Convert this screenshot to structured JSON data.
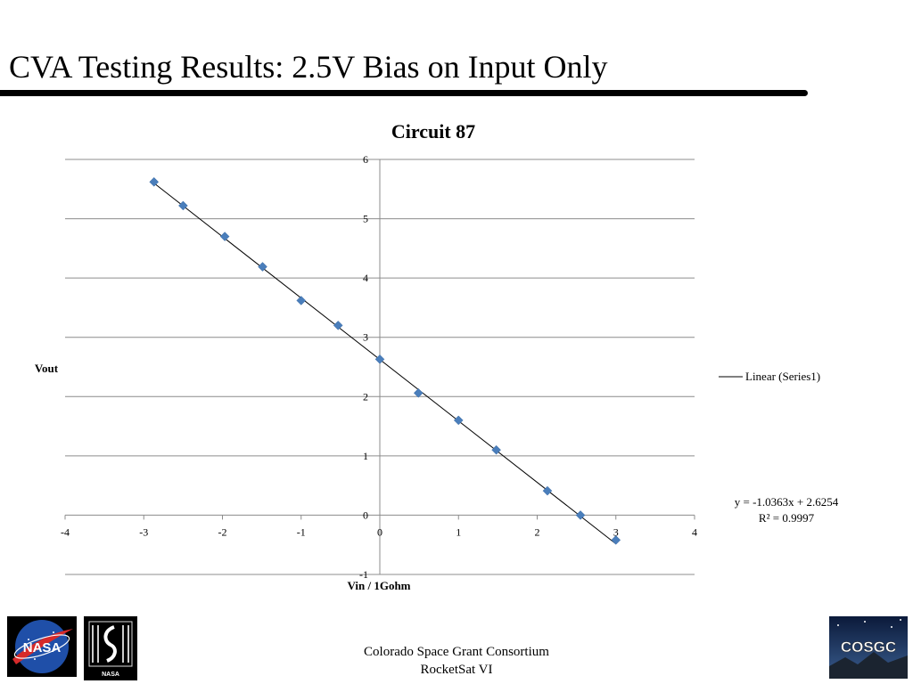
{
  "slide": {
    "title": "CVA Testing Results: 2.5V Bias on Input Only"
  },
  "footer": {
    "line1": "Colorado Space Grant Consortium",
    "line2": "RocketSat VI"
  },
  "logos": {
    "nasa_text": "NASA",
    "cu_text": "NASA",
    "cosgc_text": "COSGC"
  },
  "chart_data": {
    "type": "scatter",
    "title": "Circuit 87",
    "xlabel": "Vin / 1Gohm",
    "ylabel": "Vout",
    "xlim": [
      -4,
      4
    ],
    "ylim": [
      -1,
      6
    ],
    "xticks": [
      -4,
      -3,
      -2,
      -1,
      0,
      1,
      2,
      3,
      4
    ],
    "yticks": [
      -1,
      0,
      1,
      2,
      3,
      4,
      5,
      6
    ],
    "grid": "horizontal",
    "legend_position": "right",
    "series": [
      {
        "points": [
          [
            -2.87,
            5.62
          ],
          [
            -2.5,
            5.22
          ],
          [
            -1.97,
            4.7
          ],
          [
            -1.49,
            4.19
          ],
          [
            -1.0,
            3.62
          ],
          [
            -0.53,
            3.2
          ],
          [
            0.0,
            2.63
          ],
          [
            0.49,
            2.06
          ],
          [
            1.0,
            1.6
          ],
          [
            1.48,
            1.1
          ],
          [
            2.13,
            0.41
          ],
          [
            2.55,
            0.0
          ],
          [
            3.0,
            -0.42
          ]
        ],
        "marker_color": "#4a7ebb"
      }
    ],
    "trendline": {
      "name": "Linear (Series1)",
      "slope": -1.0363,
      "intercept": 2.6254,
      "equation": "y = -1.0363x + 2.6254",
      "r_squared": "R² = 0.9997",
      "color": "#000000"
    }
  }
}
